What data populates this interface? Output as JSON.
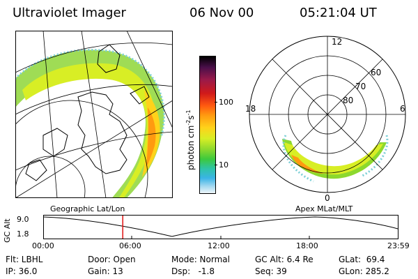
{
  "header": {
    "instrument": "Ultraviolet Imager",
    "date": "06 Nov 00",
    "time": "05:21:04 UT"
  },
  "colorbar": {
    "unit": "photon cm",
    "unit_sup1": "-2",
    "unit_mid": "s",
    "unit_sup2": "-1",
    "ticks": [
      "100",
      "10"
    ],
    "colors": [
      "#000000",
      "#4a0f4a",
      "#9a1a4a",
      "#d11a1a",
      "#ff5a10",
      "#ff9a10",
      "#ffd21a",
      "#d8ee25",
      "#8cd82e",
      "#3dc93c",
      "#2fc4a6",
      "#3ab4e6",
      "#a5d9f0",
      "#eef6f9"
    ]
  },
  "left_panel": {
    "label": "Geographic Lat/Lon"
  },
  "polar_panel": {
    "label": "Apex MLat/MLT",
    "mlt_labels": {
      "top": "12",
      "left": "18",
      "right": "6",
      "bottom": "0"
    },
    "lat_labels": [
      "60",
      "70",
      "80"
    ]
  },
  "timeline": {
    "ylabel": "GC Alt",
    "y_ticks": [
      "9.0",
      "1.8"
    ],
    "x_ticks": [
      "00:00",
      "06:00",
      "12:00",
      "18:00",
      "23:59"
    ],
    "current_time_fraction": 0.2229
  },
  "info": {
    "flt": "Flt: LBHL",
    "ip": "IP: 36.0",
    "door": "Door: Open",
    "gain": "Gain: 13",
    "mode": "Mode: Normal",
    "dsp": "Dsp:   -1.8",
    "gcalt": "GC Alt: 6.4 Re",
    "seq": "Seq: 39",
    "glat": "GLat:  69.4",
    "glon": "GLon: 285.2"
  }
}
